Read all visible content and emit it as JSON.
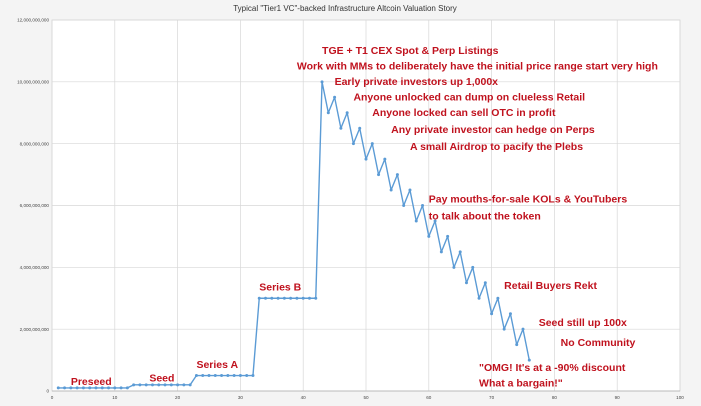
{
  "chart_data": {
    "type": "line",
    "title": "Typical \"Tier1 VC\"-backed Infrastructure Altcoin Valuation Story",
    "xlabel": "",
    "ylabel": "",
    "xlim": [
      0,
      100
    ],
    "ylim": [
      0,
      12000000000
    ],
    "grid": true,
    "line_color": "#5b9bd5",
    "annotation_color": "#c0121e",
    "x_ticks": [
      {
        "value": 0,
        "label": "0"
      },
      {
        "value": 10,
        "label": "10"
      },
      {
        "value": 20,
        "label": "20"
      },
      {
        "value": 30,
        "label": "30"
      },
      {
        "value": 40,
        "label": "40"
      },
      {
        "value": 50,
        "label": "50"
      },
      {
        "value": 60,
        "label": "60"
      },
      {
        "value": 70,
        "label": "70"
      },
      {
        "value": 80,
        "label": "80"
      },
      {
        "value": 90,
        "label": "90"
      },
      {
        "value": 100,
        "label": "100"
      }
    ],
    "y_ticks": [
      {
        "value": 0,
        "label": "0"
      },
      {
        "value": 2000000000,
        "label": "2,000,000,000"
      },
      {
        "value": 4000000000,
        "label": "4,000,000,000"
      },
      {
        "value": 6000000000,
        "label": "6,000,000,000"
      },
      {
        "value": 8000000000,
        "label": "8,000,000,000"
      },
      {
        "value": 10000000000,
        "label": "10,000,000,000"
      },
      {
        "value": 12000000000,
        "label": "12,000,000,000"
      }
    ],
    "series": [
      {
        "x": [
          1,
          2,
          3,
          4,
          5,
          6,
          7,
          8,
          9,
          10,
          11,
          12,
          13,
          14,
          15,
          16,
          17,
          18,
          19,
          20,
          21,
          22,
          23,
          24,
          25,
          26,
          27,
          28,
          29,
          30,
          31,
          32,
          33,
          34,
          35,
          36,
          37,
          38,
          39,
          40,
          41,
          42,
          43,
          44,
          45,
          46,
          47,
          48,
          49,
          50,
          51,
          52,
          53,
          54,
          55,
          56,
          57,
          58,
          59,
          60,
          61,
          62,
          63,
          64,
          65,
          66,
          67,
          68,
          69,
          70,
          71,
          72,
          73,
          74,
          75,
          76
        ],
        "y": [
          100000000,
          100000000,
          100000000,
          100000000,
          100000000,
          100000000,
          100000000,
          100000000,
          100000000,
          100000000,
          100000000,
          100000000,
          200000000,
          200000000,
          200000000,
          200000000,
          200000000,
          200000000,
          200000000,
          200000000,
          200000000,
          200000000,
          500000000,
          500000000,
          500000000,
          500000000,
          500000000,
          500000000,
          500000000,
          500000000,
          500000000,
          500000000,
          3000000000,
          3000000000,
          3000000000,
          3000000000,
          3000000000,
          3000000000,
          3000000000,
          3000000000,
          3000000000,
          3000000000,
          10000000000,
          9000000000,
          9500000000,
          8500000000,
          9000000000,
          8000000000,
          8500000000,
          7500000000,
          8000000000,
          7000000000,
          7500000000,
          6500000000,
          7000000000,
          6000000000,
          6500000000,
          5500000000,
          6000000000,
          5000000000,
          5500000000,
          4500000000,
          5000000000,
          4000000000,
          4500000000,
          3500000000,
          4000000000,
          3000000000,
          3500000000,
          2500000000,
          3000000000,
          2000000000,
          2500000000,
          1500000000,
          2000000000,
          1000000000
        ]
      }
    ],
    "annotations": [
      {
        "text": "TGE + T1 CEX Spot & Perp Listings",
        "x": 43,
        "y": 10900000000
      },
      {
        "text": "Work with MMs to deliberately have the initial price range start very high",
        "x": 39,
        "y": 10400000000
      },
      {
        "text": "Early private investors up 1,000x",
        "x": 45,
        "y": 9900000000
      },
      {
        "text": "Anyone unlocked can dump on clueless Retail",
        "x": 48,
        "y": 9400000000
      },
      {
        "text": "Anyone locked can sell OTC in profit",
        "x": 51,
        "y": 8900000000
      },
      {
        "text": "Any private investor can hedge on Perps",
        "x": 54,
        "y": 8350000000
      },
      {
        "text": "A small Airdrop to pacify the Plebs",
        "x": 57,
        "y": 7800000000
      },
      {
        "text": "Pay mouths-for-sale KOLs & YouTubers",
        "x": 60,
        "y": 6100000000
      },
      {
        "text": "to talk about the token",
        "x": 60,
        "y": 5550000000
      },
      {
        "text": "Series B",
        "x": 33,
        "y": 3250000000
      },
      {
        "text": "Retail Buyers Rekt",
        "x": 72,
        "y": 3300000000
      },
      {
        "text": "Seed still up 100x",
        "x": 77.5,
        "y": 2100000000
      },
      {
        "text": "No Community",
        "x": 81,
        "y": 1450000000
      },
      {
        "text": "Series A",
        "x": 23,
        "y": 750000000
      },
      {
        "text": "Seed",
        "x": 15.5,
        "y": 300000000
      },
      {
        "text": "Preseed",
        "x": 3,
        "y": 200000000
      },
      {
        "text": "\"OMG! It's at a -90% discount",
        "x": 68,
        "y": 650000000
      },
      {
        "text": "What a bargain!\"",
        "x": 68,
        "y": 150000000
      }
    ]
  }
}
